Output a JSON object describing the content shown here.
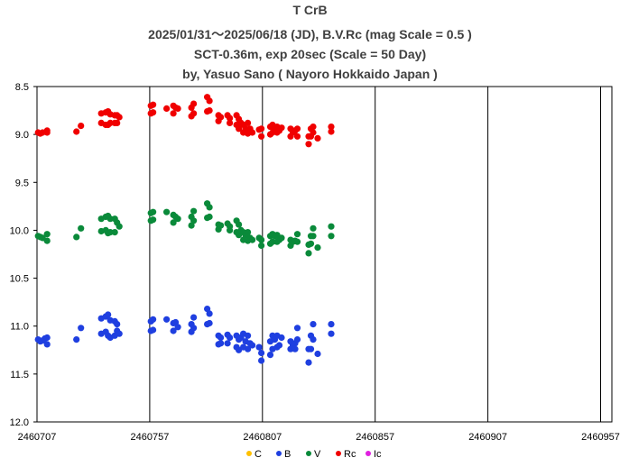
{
  "chart_data": {
    "type": "scatter",
    "title": "T CrB",
    "subtitles": [
      "2025/01/31～2025/06/18 (JD),  B.V.Rc (mag Scale = 0.5 )",
      "SCT-0.36m, exp 20sec (Scale = 50 Day)",
      "by, Yasuo Sano ( Nayoro Hokkaido Japan )"
    ],
    "xlim": [
      2460707,
      2460962
    ],
    "ylim": [
      8.5,
      12.0
    ],
    "y_inverted": true,
    "x_ticks": [
      "2460707",
      "2460757",
      "2460807",
      "2460857",
      "2460907",
      "2460957"
    ],
    "x_tick_values": [
      2460707,
      2460757,
      2460807,
      2460857,
      2460907,
      2460957
    ],
    "y_ticks": [
      "8.5",
      "9.0",
      "9.5",
      "10.0",
      "10.5",
      "11.0",
      "11.5",
      "12.0"
    ],
    "y_tick_values": [
      8.5,
      9.0,
      9.5,
      10.0,
      10.5,
      11.0,
      11.5,
      12.0
    ],
    "grid": "vertical",
    "legend_position": "bottom",
    "series": [
      {
        "name": "C",
        "color": "#FFC000",
        "points": []
      },
      {
        "name": "B",
        "color": "#1F3FE0",
        "points": [
          [
            2460707.5,
            11.14
          ],
          [
            2460708.5,
            11.16
          ],
          [
            2460709.5,
            11.15
          ],
          [
            2460710.5,
            11.13
          ],
          [
            2460711.5,
            11.19
          ],
          [
            2460711.5,
            11.12
          ],
          [
            2460724.5,
            11.14
          ],
          [
            2460726.5,
            11.02
          ],
          [
            2460735.5,
            10.92
          ],
          [
            2460735.5,
            11.08
          ],
          [
            2460737.5,
            10.9
          ],
          [
            2460737.5,
            11.06
          ],
          [
            2460738.5,
            10.88
          ],
          [
            2460738.5,
            11.1
          ],
          [
            2460739.5,
            10.94
          ],
          [
            2460739.5,
            11.12
          ],
          [
            2460741.5,
            10.95
          ],
          [
            2460741.5,
            11.1
          ],
          [
            2460742.5,
            10.98
          ],
          [
            2460742.5,
            11.05
          ],
          [
            2460743.5,
            11.08
          ],
          [
            2460757.5,
            10.95
          ],
          [
            2460757.5,
            11.05
          ],
          [
            2460758.5,
            10.93
          ],
          [
            2460758.5,
            11.04
          ],
          [
            2460764.5,
            10.93
          ],
          [
            2460767.5,
            10.97
          ],
          [
            2460767.5,
            11.05
          ],
          [
            2460768.5,
            10.96
          ],
          [
            2460769.5,
            11.01
          ],
          [
            2460775.5,
            10.98
          ],
          [
            2460775.5,
            11.06
          ],
          [
            2460776.5,
            10.91
          ],
          [
            2460776.5,
            11.02
          ],
          [
            2460782.5,
            10.82
          ],
          [
            2460782.5,
            10.98
          ],
          [
            2460783.5,
            10.87
          ],
          [
            2460783.5,
            10.97
          ],
          [
            2460787.5,
            11.1
          ],
          [
            2460787.5,
            11.19
          ],
          [
            2460788.5,
            11.12
          ],
          [
            2460788.5,
            11.18
          ],
          [
            2460791.5,
            11.09
          ],
          [
            2460791.5,
            11.18
          ],
          [
            2460792.5,
            11.12
          ],
          [
            2460795.5,
            11.1
          ],
          [
            2460795.5,
            11.22
          ],
          [
            2460796.5,
            11.14
          ],
          [
            2460796.5,
            11.25
          ],
          [
            2460797.5,
            11.12
          ],
          [
            2460798.5,
            11.08
          ],
          [
            2460798.5,
            11.22
          ],
          [
            2460799.5,
            11.16
          ],
          [
            2460800.5,
            11.1
          ],
          [
            2460800.5,
            11.24
          ],
          [
            2460801.5,
            11.18
          ],
          [
            2460802.5,
            11.2
          ],
          [
            2460805.5,
            11.22
          ],
          [
            2460806.5,
            11.28
          ],
          [
            2460806.5,
            11.36
          ],
          [
            2460810.5,
            11.16
          ],
          [
            2460810.5,
            11.3
          ],
          [
            2460811.5,
            11.1
          ],
          [
            2460811.5,
            11.24
          ],
          [
            2460812.5,
            11.14
          ],
          [
            2460813.5,
            11.1
          ],
          [
            2460813.5,
            11.22
          ],
          [
            2460814.5,
            11.2
          ],
          [
            2460815.5,
            11.12
          ],
          [
            2460819.5,
            11.16
          ],
          [
            2460819.5,
            11.24
          ],
          [
            2460820.5,
            11.2
          ],
          [
            2460821.5,
            11.18
          ],
          [
            2460821.5,
            11.24
          ],
          [
            2460822.5,
            11.02
          ],
          [
            2460822.5,
            11.14
          ],
          [
            2460827.5,
            11.24
          ],
          [
            2460827.5,
            11.38
          ],
          [
            2460828.5,
            11.1
          ],
          [
            2460828.5,
            11.24
          ],
          [
            2460829.5,
            10.98
          ],
          [
            2460829.5,
            11.14
          ],
          [
            2460831.5,
            11.29
          ],
          [
            2460837.5,
            10.98
          ],
          [
            2460837.5,
            11.08
          ]
        ]
      },
      {
        "name": "V",
        "color": "#0A8A3A",
        "points": [
          [
            2460707.5,
            10.06
          ],
          [
            2460708.5,
            10.07
          ],
          [
            2460709.5,
            10.08
          ],
          [
            2460711.5,
            10.11
          ],
          [
            2460711.5,
            10.04
          ],
          [
            2460724.5,
            10.07
          ],
          [
            2460726.5,
            9.98
          ],
          [
            2460735.5,
            9.88
          ],
          [
            2460735.5,
            10.01
          ],
          [
            2460737.5,
            9.86
          ],
          [
            2460737.5,
            10.0
          ],
          [
            2460738.5,
            9.85
          ],
          [
            2460738.5,
            10.03
          ],
          [
            2460739.5,
            9.88
          ],
          [
            2460739.5,
            10.02
          ],
          [
            2460741.5,
            9.88
          ],
          [
            2460741.5,
            10.02
          ],
          [
            2460742.5,
            9.92
          ],
          [
            2460743.5,
            9.96
          ],
          [
            2460757.5,
            9.82
          ],
          [
            2460757.5,
            9.9
          ],
          [
            2460758.5,
            9.81
          ],
          [
            2460758.5,
            9.89
          ],
          [
            2460764.5,
            9.81
          ],
          [
            2460767.5,
            9.84
          ],
          [
            2460767.5,
            9.92
          ],
          [
            2460768.5,
            9.86
          ],
          [
            2460769.5,
            9.88
          ],
          [
            2460775.5,
            9.86
          ],
          [
            2460775.5,
            9.95
          ],
          [
            2460776.5,
            9.8
          ],
          [
            2460776.5,
            9.9
          ],
          [
            2460782.5,
            9.72
          ],
          [
            2460782.5,
            9.87
          ],
          [
            2460783.5,
            9.76
          ],
          [
            2460783.5,
            9.86
          ],
          [
            2460787.5,
            9.94
          ],
          [
            2460787.5,
            9.99
          ],
          [
            2460788.5,
            9.95
          ],
          [
            2460791.5,
            9.93
          ],
          [
            2460792.5,
            9.96
          ],
          [
            2460792.5,
            10.0
          ],
          [
            2460795.5,
            9.9
          ],
          [
            2460795.5,
            10.02
          ],
          [
            2460796.5,
            9.94
          ],
          [
            2460796.5,
            10.05
          ],
          [
            2460797.5,
            10.0
          ],
          [
            2460798.5,
            10.02
          ],
          [
            2460798.5,
            10.1
          ],
          [
            2460799.5,
            10.05
          ],
          [
            2460800.5,
            10.02
          ],
          [
            2460800.5,
            10.11
          ],
          [
            2460801.5,
            10.08
          ],
          [
            2460802.5,
            10.1
          ],
          [
            2460805.5,
            10.08
          ],
          [
            2460806.5,
            10.1
          ],
          [
            2460806.5,
            10.16
          ],
          [
            2460810.5,
            10.06
          ],
          [
            2460810.5,
            10.14
          ],
          [
            2460811.5,
            10.04
          ],
          [
            2460811.5,
            10.12
          ],
          [
            2460812.5,
            10.06
          ],
          [
            2460813.5,
            10.05
          ],
          [
            2460813.5,
            10.12
          ],
          [
            2460814.5,
            10.1
          ],
          [
            2460815.5,
            10.08
          ],
          [
            2460819.5,
            10.1
          ],
          [
            2460819.5,
            10.16
          ],
          [
            2460820.5,
            10.12
          ],
          [
            2460821.5,
            10.11
          ],
          [
            2460822.5,
            10.04
          ],
          [
            2460822.5,
            10.12
          ],
          [
            2460827.5,
            10.15
          ],
          [
            2460827.5,
            10.24
          ],
          [
            2460828.5,
            10.06
          ],
          [
            2460828.5,
            10.14
          ],
          [
            2460829.5,
            9.98
          ],
          [
            2460829.5,
            10.06
          ],
          [
            2460831.5,
            10.18
          ],
          [
            2460837.5,
            9.96
          ],
          [
            2460837.5,
            10.06
          ]
        ]
      },
      {
        "name": "Rc",
        "color": "#F00000",
        "points": [
          [
            2460707.5,
            8.98
          ],
          [
            2460708.5,
            8.99
          ],
          [
            2460709.5,
            8.98
          ],
          [
            2460711.5,
            8.98
          ],
          [
            2460711.5,
            8.96
          ],
          [
            2460724.5,
            8.97
          ],
          [
            2460726.5,
            8.91
          ],
          [
            2460735.5,
            8.78
          ],
          [
            2460735.5,
            8.88
          ],
          [
            2460737.5,
            8.77
          ],
          [
            2460737.5,
            8.9
          ],
          [
            2460738.5,
            8.76
          ],
          [
            2460738.5,
            8.9
          ],
          [
            2460739.5,
            8.79
          ],
          [
            2460739.5,
            8.88
          ],
          [
            2460741.5,
            8.8
          ],
          [
            2460741.5,
            8.88
          ],
          [
            2460742.5,
            8.8
          ],
          [
            2460742.5,
            8.88
          ],
          [
            2460743.5,
            8.82
          ],
          [
            2460757.5,
            8.7
          ],
          [
            2460757.5,
            8.78
          ],
          [
            2460758.5,
            8.69
          ],
          [
            2460758.5,
            8.77
          ],
          [
            2460764.5,
            8.73
          ],
          [
            2460767.5,
            8.7
          ],
          [
            2460767.5,
            8.78
          ],
          [
            2460768.5,
            8.72
          ],
          [
            2460769.5,
            8.73
          ],
          [
            2460775.5,
            8.72
          ],
          [
            2460775.5,
            8.81
          ],
          [
            2460776.5,
            8.68
          ],
          [
            2460776.5,
            8.78
          ],
          [
            2460782.5,
            8.61
          ],
          [
            2460782.5,
            8.76
          ],
          [
            2460783.5,
            8.65
          ],
          [
            2460783.5,
            8.75
          ],
          [
            2460787.5,
            8.8
          ],
          [
            2460787.5,
            8.86
          ],
          [
            2460788.5,
            8.82
          ],
          [
            2460791.5,
            8.8
          ],
          [
            2460792.5,
            8.83
          ],
          [
            2460792.5,
            8.88
          ],
          [
            2460795.5,
            8.8
          ],
          [
            2460795.5,
            8.9
          ],
          [
            2460796.5,
            8.84
          ],
          [
            2460796.5,
            8.94
          ],
          [
            2460797.5,
            8.88
          ],
          [
            2460798.5,
            8.9
          ],
          [
            2460798.5,
            8.98
          ],
          [
            2460799.5,
            8.94
          ],
          [
            2460800.5,
            8.88
          ],
          [
            2460800.5,
            8.99
          ],
          [
            2460801.5,
            8.94
          ],
          [
            2460802.5,
            8.98
          ],
          [
            2460805.5,
            8.95
          ],
          [
            2460806.5,
            8.94
          ],
          [
            2460806.5,
            9.02
          ],
          [
            2460810.5,
            8.92
          ],
          [
            2460810.5,
            9.0
          ],
          [
            2460811.5,
            8.9
          ],
          [
            2460811.5,
            8.98
          ],
          [
            2460812.5,
            8.94
          ],
          [
            2460813.5,
            8.92
          ],
          [
            2460813.5,
            8.98
          ],
          [
            2460814.5,
            8.96
          ],
          [
            2460815.5,
            8.93
          ],
          [
            2460819.5,
            8.94
          ],
          [
            2460819.5,
            9.02
          ],
          [
            2460820.5,
            8.98
          ],
          [
            2460821.5,
            8.96
          ],
          [
            2460822.5,
            8.94
          ],
          [
            2460822.5,
            9.02
          ],
          [
            2460827.5,
            9.02
          ],
          [
            2460827.5,
            9.1
          ],
          [
            2460828.5,
            8.94
          ],
          [
            2460828.5,
            9.02
          ],
          [
            2460829.5,
            8.92
          ],
          [
            2460829.5,
            8.98
          ],
          [
            2460831.5,
            9.04
          ],
          [
            2460837.5,
            8.92
          ],
          [
            2460837.5,
            8.97
          ]
        ]
      },
      {
        "name": "Ic",
        "color": "#E020E0",
        "points": []
      }
    ]
  }
}
